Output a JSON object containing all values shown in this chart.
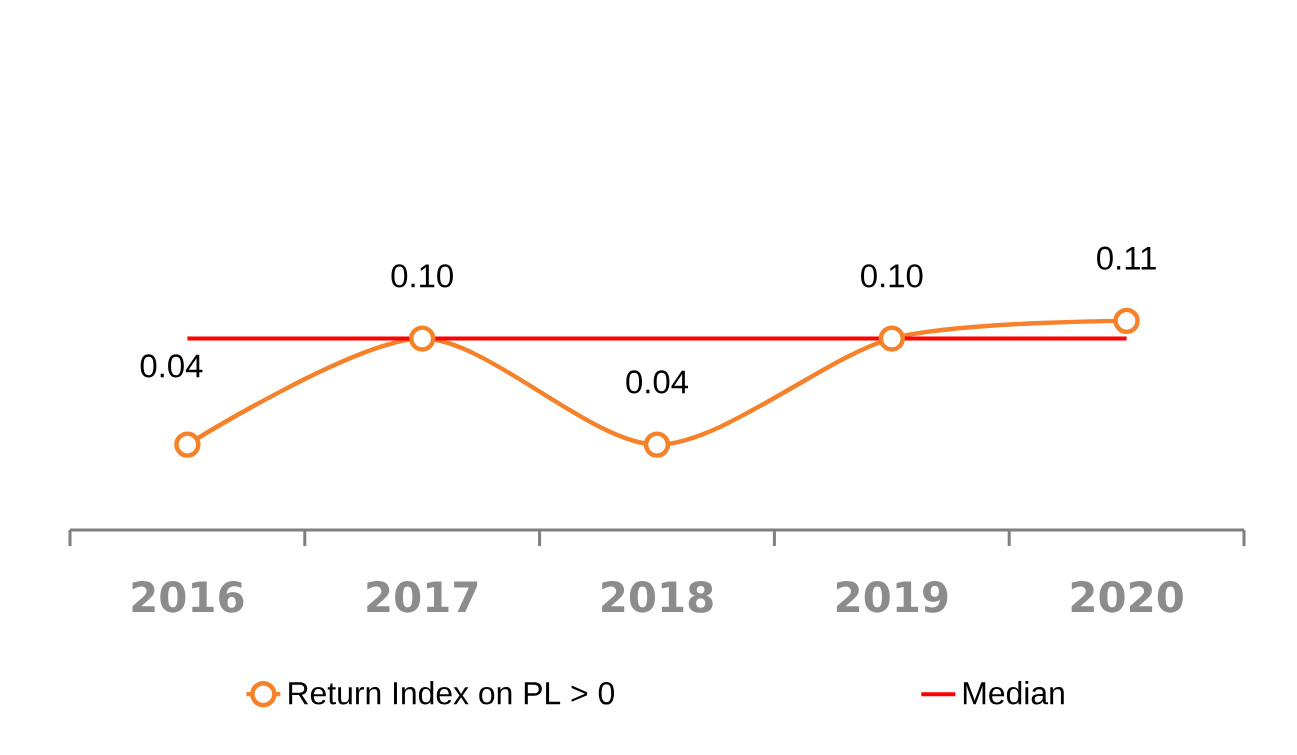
{
  "chart_data": {
    "type": "line",
    "categories": [
      "2016",
      "2017",
      "2018",
      "2019",
      "2020"
    ],
    "series": [
      {
        "name": "Return Index on PL > 0",
        "color": "#f5822a",
        "values": [
          0.04,
          0.1,
          0.04,
          0.1,
          0.11
        ],
        "value_labels": [
          "0.04",
          "0.10",
          "0.04",
          "0.10",
          "0.11"
        ]
      }
    ],
    "marker": "circle",
    "line_style": "solid",
    "legend": "bottom",
    "ref_lines": [
      {
        "axis": "y",
        "value": 0.1,
        "label": "Median",
        "color": "#ff0000"
      }
    ]
  }
}
